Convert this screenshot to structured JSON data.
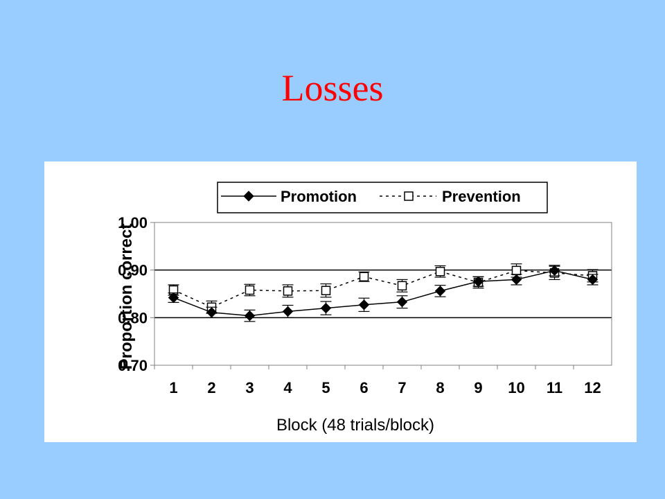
{
  "slide": {
    "title": "Losses"
  },
  "chart_data": {
    "type": "line",
    "title": "",
    "xlabel": "Block (48 trials/block)",
    "ylabel": "Proportion correct",
    "categories": [
      "1",
      "2",
      "3",
      "4",
      "5",
      "6",
      "7",
      "8",
      "9",
      "10",
      "11",
      "12"
    ],
    "ylim": [
      0.7,
      1.0
    ],
    "yticks": [
      "0.70",
      "0.80",
      "0.90",
      "1.00"
    ],
    "gridlines": [
      0.8,
      0.9
    ],
    "legend_position": "top",
    "series": [
      {
        "name": "Promotion",
        "values": [
          0.842,
          0.811,
          0.804,
          0.813,
          0.82,
          0.827,
          0.833,
          0.856,
          0.876,
          0.88,
          0.899,
          0.88
        ],
        "errors": [
          0.01,
          0.011,
          0.012,
          0.013,
          0.014,
          0.014,
          0.013,
          0.012,
          0.01,
          0.011,
          0.011,
          0.011
        ],
        "marker": "filled-diamond",
        "line_style": "solid",
        "color": "#000000"
      },
      {
        "name": "Prevention",
        "values": [
          0.858,
          0.822,
          0.858,
          0.856,
          0.857,
          0.886,
          0.867,
          0.897,
          0.874,
          0.899,
          0.894,
          0.888
        ],
        "errors": [
          0.011,
          0.013,
          0.012,
          0.013,
          0.014,
          0.01,
          0.013,
          0.012,
          0.012,
          0.014,
          0.014,
          0.013
        ],
        "marker": "open-square",
        "line_style": "dashed",
        "color": "#000000"
      }
    ]
  }
}
